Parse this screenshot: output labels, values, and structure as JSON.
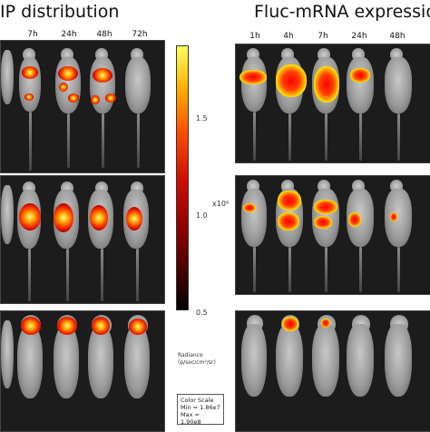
{
  "titles": {
    "left": "IP distribution",
    "right": "Fluc-mRNA expressio"
  },
  "left_timepoints": [
    "7h",
    "24h",
    "48h",
    "72h"
  ],
  "right_timepoints": [
    "1h",
    "4h",
    "7h",
    "24h",
    "48h"
  ],
  "colorbar": {
    "exponent_label": "x10⁸",
    "ticks": [
      "1.5",
      "1.0",
      "0.5"
    ],
    "radiance_label": "Radiance",
    "radiance_units": "(p/sec/cm²/sr)",
    "scale_title": "Color Scale",
    "scale_min": "Min = 1.86e7",
    "scale_max": "Max = 1.90e8"
  }
}
